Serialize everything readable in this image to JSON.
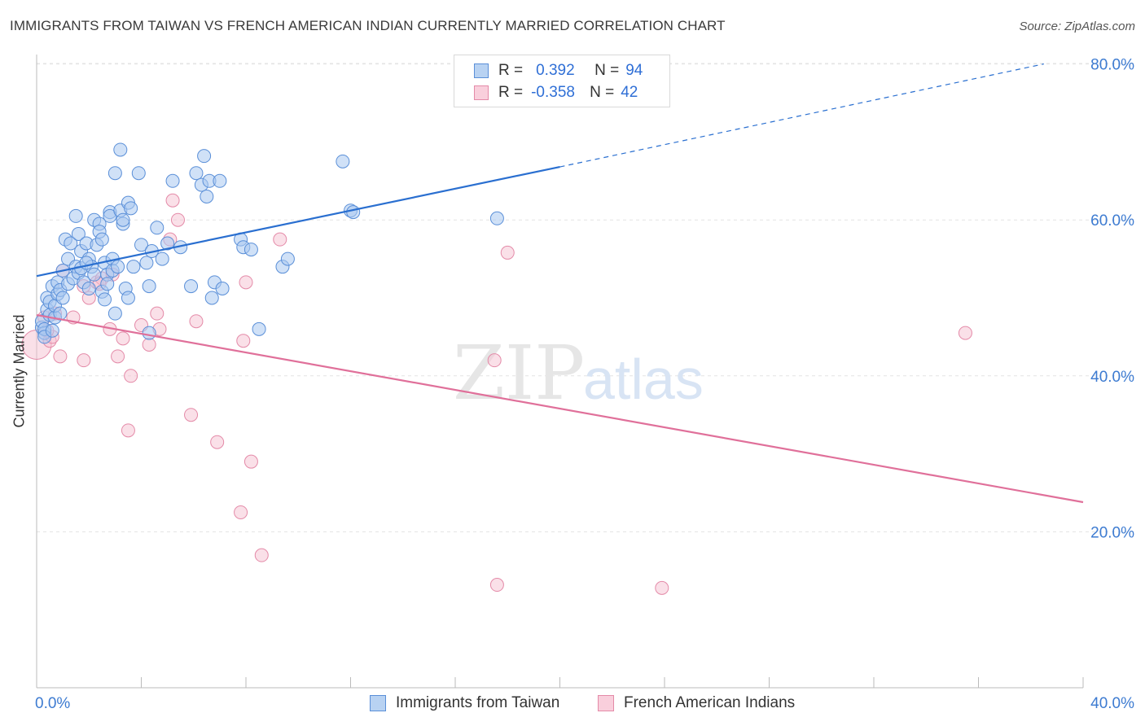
{
  "header": {
    "title": "IMMIGRANTS FROM TAIWAN VS FRENCH AMERICAN INDIAN CURRENTLY MARRIED CORRELATION CHART",
    "source": "Source: ZipAtlas.com"
  },
  "watermark": {
    "zip": "ZIP",
    "atlas": "atlas"
  },
  "legend": {
    "rows": [
      {
        "r_label": "R =",
        "r_value": "0.392",
        "n_label": "N =",
        "n_value": "94"
      },
      {
        "r_label": "R =",
        "r_value": "-0.358",
        "n_label": "N =",
        "n_value": "42"
      }
    ]
  },
  "bottom_legend": {
    "series1": "Immigrants from Taiwan",
    "series2": "French American Indians"
  },
  "colors": {
    "blue_fill": "#aac8f0",
    "blue_stroke": "#5a8fd8",
    "blue_line": "#2a6fd0",
    "pink_fill": "#f6c2d2",
    "pink_stroke": "#e48aa8",
    "pink_line": "#e0709a",
    "axis_text": "#3d7bd1",
    "grid": "#e3e3e3"
  },
  "chart_data": {
    "type": "scatter",
    "title": "IMMIGRANTS FROM TAIWAN VS FRENCH AMERICAN INDIAN CURRENTLY MARRIED CORRELATION CHART",
    "xlabel": "",
    "ylabel": "Currently Married",
    "xlim": [
      0,
      40
    ],
    "ylim": [
      0,
      84
    ],
    "x_tick_labels": [
      "0.0%",
      "40.0%"
    ],
    "y_ticks": [
      20,
      40,
      60,
      80
    ],
    "y_tick_labels": [
      "20.0%",
      "40.0%",
      "60.0%",
      "80.0%"
    ],
    "grid": true,
    "legend_position": "top-center",
    "series": [
      {
        "name": "Immigrants from Taiwan",
        "color": "#aac8f0",
        "trend": {
          "x1": 0,
          "y1": 52.8,
          "x2": 20,
          "y2": 66.8,
          "dash_x2": 38.5,
          "dash_y2": 80.0
        },
        "points": [
          [
            0.2,
            46.2
          ],
          [
            0.2,
            47.0
          ],
          [
            0.3,
            45.5
          ],
          [
            0.3,
            46.0
          ],
          [
            0.3,
            45.0
          ],
          [
            0.4,
            48.5
          ],
          [
            0.4,
            50.0
          ],
          [
            0.5,
            47.8
          ],
          [
            0.5,
            49.5
          ],
          [
            0.6,
            51.5
          ],
          [
            0.6,
            45.8
          ],
          [
            0.7,
            47.5
          ],
          [
            0.7,
            49.0
          ],
          [
            0.8,
            50.5
          ],
          [
            0.8,
            52.0
          ],
          [
            0.9,
            48.0
          ],
          [
            0.9,
            51.0
          ],
          [
            1.0,
            53.5
          ],
          [
            1.0,
            50.0
          ],
          [
            1.1,
            57.5
          ],
          [
            1.2,
            55.0
          ],
          [
            1.2,
            51.8
          ],
          [
            1.3,
            57.0
          ],
          [
            1.4,
            52.5
          ],
          [
            1.5,
            60.5
          ],
          [
            1.5,
            54.0
          ],
          [
            1.6,
            53.2
          ],
          [
            1.6,
            58.2
          ],
          [
            1.7,
            56.0
          ],
          [
            1.7,
            53.8
          ],
          [
            1.8,
            52.0
          ],
          [
            1.9,
            57.0
          ],
          [
            2.0,
            55.0
          ],
          [
            2.0,
            51.2
          ],
          [
            2.1,
            54.0
          ],
          [
            2.2,
            60.0
          ],
          [
            2.2,
            53.0
          ],
          [
            2.3,
            56.8
          ],
          [
            2.4,
            59.5
          ],
          [
            2.4,
            58.5
          ],
          [
            2.5,
            50.8
          ],
          [
            2.5,
            57.5
          ],
          [
            2.6,
            54.5
          ],
          [
            2.7,
            53.0
          ],
          [
            2.7,
            51.8
          ],
          [
            2.8,
            61.0
          ],
          [
            2.8,
            60.5
          ],
          [
            2.9,
            55.0
          ],
          [
            2.9,
            53.5
          ],
          [
            3.0,
            66.0
          ],
          [
            3.0,
            48.0
          ],
          [
            3.1,
            54.0
          ],
          [
            3.2,
            61.2
          ],
          [
            3.2,
            69.0
          ],
          [
            3.3,
            59.5
          ],
          [
            3.3,
            60.0
          ],
          [
            3.4,
            51.2
          ],
          [
            3.5,
            50.0
          ],
          [
            3.5,
            62.2
          ],
          [
            3.6,
            61.5
          ],
          [
            3.7,
            54.0
          ],
          [
            3.9,
            66.0
          ],
          [
            4.0,
            56.8
          ],
          [
            4.2,
            54.5
          ],
          [
            4.3,
            51.5
          ],
          [
            4.4,
            56.0
          ],
          [
            4.6,
            59.0
          ],
          [
            4.8,
            55.0
          ],
          [
            5.0,
            57.0
          ],
          [
            5.2,
            65.0
          ],
          [
            5.5,
            56.5
          ],
          [
            5.9,
            51.5
          ],
          [
            6.1,
            66.0
          ],
          [
            6.3,
            64.5
          ],
          [
            6.4,
            68.2
          ],
          [
            6.5,
            63.0
          ],
          [
            6.6,
            65.0
          ],
          [
            6.7,
            50.0
          ],
          [
            6.8,
            52.0
          ],
          [
            7.0,
            65.0
          ],
          [
            7.1,
            51.2
          ],
          [
            7.8,
            57.5
          ],
          [
            7.9,
            56.5
          ],
          [
            8.2,
            56.2
          ],
          [
            8.5,
            46.0
          ],
          [
            9.4,
            54.0
          ],
          [
            9.6,
            55.0
          ],
          [
            11.7,
            67.5
          ],
          [
            12.0,
            61.2
          ],
          [
            12.1,
            61.0
          ],
          [
            17.6,
            60.2
          ],
          [
            4.3,
            45.5
          ],
          [
            1.9,
            54.5
          ],
          [
            2.6,
            49.8
          ]
        ]
      },
      {
        "name": "French American Indians",
        "color": "#f6c2d2",
        "trend": {
          "x1": 0,
          "y1": 47.8,
          "x2": 40,
          "y2": 23.8
        },
        "points": [
          [
            0.0,
            44.0
          ],
          [
            0.3,
            47.5
          ],
          [
            0.5,
            44.5
          ],
          [
            0.6,
            45.0
          ],
          [
            0.7,
            48.0
          ],
          [
            0.9,
            42.5
          ],
          [
            1.0,
            53.5
          ],
          [
            1.4,
            47.5
          ],
          [
            1.8,
            42.0
          ],
          [
            2.0,
            50.0
          ],
          [
            2.3,
            52.0
          ],
          [
            2.5,
            52.5
          ],
          [
            2.8,
            46.0
          ],
          [
            2.9,
            53.0
          ],
          [
            3.1,
            42.5
          ],
          [
            3.3,
            44.8
          ],
          [
            3.5,
            33.0
          ],
          [
            3.6,
            40.0
          ],
          [
            4.0,
            46.5
          ],
          [
            4.3,
            44.0
          ],
          [
            4.6,
            48.0
          ],
          [
            4.7,
            46.0
          ],
          [
            5.1,
            57.5
          ],
          [
            5.2,
            62.5
          ],
          [
            5.4,
            60.0
          ],
          [
            5.9,
            35.0
          ],
          [
            6.1,
            47.0
          ],
          [
            6.9,
            31.5
          ],
          [
            7.8,
            22.5
          ],
          [
            7.9,
            44.5
          ],
          [
            8.0,
            52.0
          ],
          [
            8.2,
            29.0
          ],
          [
            8.6,
            17.0
          ],
          [
            9.3,
            57.5
          ],
          [
            17.5,
            42.0
          ],
          [
            17.6,
            13.2
          ],
          [
            18.0,
            55.8
          ],
          [
            23.9,
            12.8
          ],
          [
            35.5,
            45.5
          ],
          [
            1.8,
            51.5
          ],
          [
            0.4,
            45.8
          ],
          [
            2.4,
            51.8
          ]
        ]
      }
    ]
  }
}
